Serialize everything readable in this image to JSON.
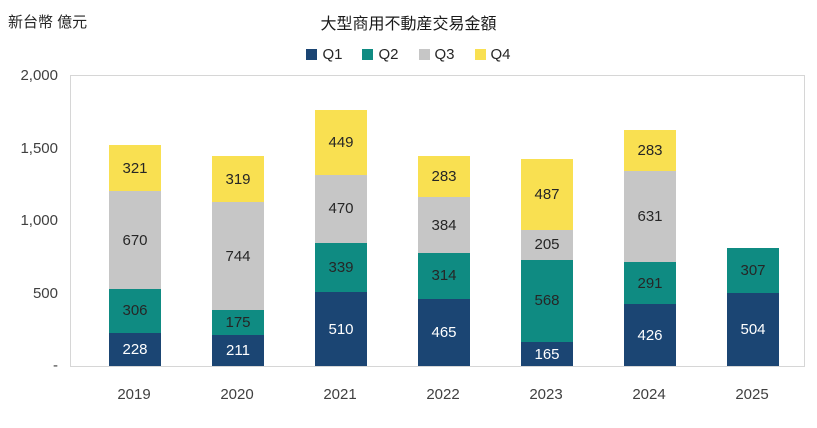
{
  "chart_data": {
    "type": "bar",
    "stacked": true,
    "title": "大型商用不動産交易金額",
    "ylabel": "新台幣 億元",
    "xlabel": "",
    "categories": [
      "2019",
      "2020",
      "2021",
      "2022",
      "2023",
      "2024",
      "2025"
    ],
    "series": [
      {
        "name": "Q1",
        "color": "#1B4573",
        "label_color": "#ffffff",
        "values": [
          228,
          211,
          510,
          465,
          165,
          426,
          504
        ]
      },
      {
        "name": "Q2",
        "color": "#0F8B82",
        "label_color": "#262626",
        "values": [
          306,
          175,
          339,
          314,
          568,
          291,
          307
        ]
      },
      {
        "name": "Q3",
        "color": "#C6C6C6",
        "label_color": "#262626",
        "values": [
          670,
          744,
          470,
          384,
          205,
          631,
          null
        ]
      },
      {
        "name": "Q4",
        "color": "#F9E051",
        "label_color": "#262626",
        "values": [
          321,
          319,
          449,
          283,
          487,
          283,
          null
        ]
      }
    ],
    "ylim": [
      0,
      2000
    ],
    "yticks": [
      {
        "value": 0,
        "label": "-"
      },
      {
        "value": 500,
        "label": "500"
      },
      {
        "value": 1000,
        "label": "1,000"
      },
      {
        "value": 1500,
        "label": "1,500"
      },
      {
        "value": 2000,
        "label": "2,000"
      }
    ],
    "legend_position": "top",
    "grid": false,
    "data_labels": true
  }
}
